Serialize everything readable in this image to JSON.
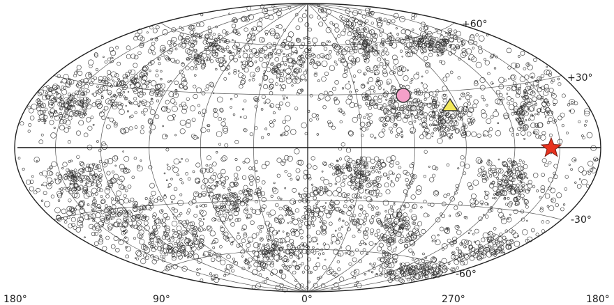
{
  "map": {
    "projection": "Hammer-Aitoff all-sky",
    "longitude_labels": [
      "180°",
      "90°",
      "0°",
      "270°",
      "180°"
    ],
    "latitude_labels": [
      "+60°",
      "+30°",
      "-30°",
      "-60°"
    ],
    "markers": [
      {
        "name": "circle-marker",
        "color": "#f4a0c8"
      },
      {
        "name": "triangle-marker",
        "color": "#f2e85a"
      },
      {
        "name": "star-marker",
        "color": "#e8321e"
      }
    ],
    "colors": {
      "points": "#333333",
      "grid": "#555555"
    }
  }
}
